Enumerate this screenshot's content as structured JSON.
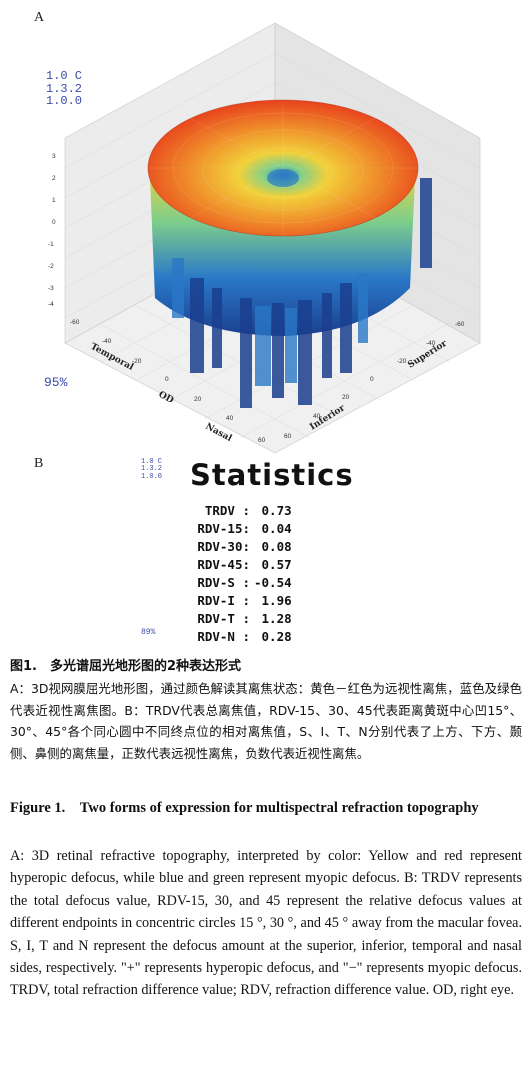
{
  "panel_a": {
    "label": "A",
    "stamp": [
      "1.0 C",
      "1.3.2",
      "1.0.0"
    ],
    "percent": "95%",
    "z_ticks": [
      "3",
      "2",
      "1",
      "0",
      "-1",
      "-2",
      "-3",
      "-4"
    ],
    "left_axis_ticks": [
      "-60",
      "-40",
      "-20",
      "0",
      "20",
      "40",
      "60"
    ],
    "right_axis_ticks": [
      "-60",
      "-40",
      "-20",
      "0",
      "20",
      "40",
      "60"
    ],
    "left_axis_labels": [
      "Temporal",
      "OD",
      "Nasal"
    ],
    "right_axis_labels": [
      "Superior",
      "Inferior"
    ],
    "colors": {
      "hyperopic": "#e8421c",
      "mid": "#f2d13a",
      "neutral": "#7fcf8a",
      "myopic": "#2a78c8",
      "deep": "#1b3f8f"
    }
  },
  "panel_b": {
    "label": "B",
    "stamp": [
      "1.0 C",
      "1.3.2",
      "1.0.0"
    ],
    "percent": "89%",
    "title": "Statistics",
    "rows": [
      {
        "key": "TRDV :",
        "value": " 0.73"
      },
      {
        "key": "RDV-15:",
        "value": " 0.04"
      },
      {
        "key": "RDV-30:",
        "value": " 0.08"
      },
      {
        "key": "RDV-45:",
        "value": " 0.57"
      },
      {
        "key": "RDV-S :",
        "value": "-0.54"
      },
      {
        "key": "RDV-I :",
        "value": " 1.96"
      },
      {
        "key": "RDV-T :",
        "value": " 1.28"
      },
      {
        "key": "RDV-N :",
        "value": " 0.28"
      }
    ]
  },
  "caption": {
    "cn_title": "图1.　多光谱屈光地形图的2种表达形式",
    "cn_body": "A：3D视网膜屈光地形图，通过颜色解读其离焦状态：黄色－红色为远视性离焦，蓝色及绿色代表近视性离焦图。B：TRDV代表总离焦值，RDV-15、30、45代表距离黄斑中心凹15°、30°、45°各个同心圆中不同终点位的相对离焦值，S、I、T、N分别代表了上方、下方、颞侧、鼻侧的离焦量，正数代表远视性离焦，负数代表近视性离焦。",
    "en_title": "Figure 1.　Two forms of expression for multispectral refraction topography",
    "en_body": "A: 3D retinal refractive topography, interpreted by color: Yellow and red represent hyperopic defocus, while blue and green represent myopic defocus. B: TRDV represents the total defocus value, RDV-15, 30, and 45 represent the relative defocus values at different endpoints in concentric circles 15 °, 30 °, and 45 ° away from the macular fovea. S, I, T and N represent the defocus amount at the superior, inferior, temporal and nasal sides, respectively. \"+\" represents hyperopic defocus, and \"−\" represents myopic defocus. TRDV, total refraction difference value; RDV, refraction difference value. OD, right eye."
  }
}
